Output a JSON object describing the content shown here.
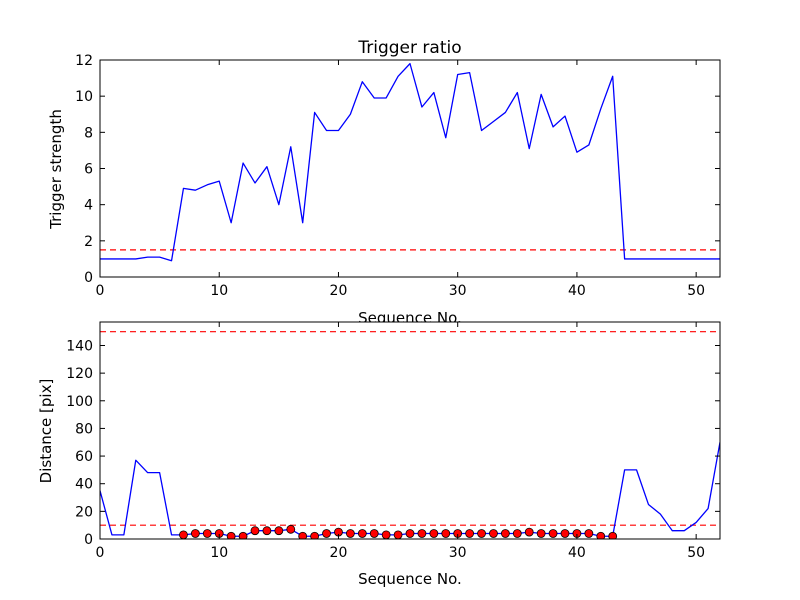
{
  "colors": {
    "line": "#0000ff",
    "threshold": "#ff0000",
    "marker_fill": "#ff0000",
    "marker_edge": "#000000",
    "axes": "#000000",
    "background": "#ffffff"
  },
  "chart_data": [
    {
      "type": "line",
      "title": "Trigger ratio",
      "xlabel": "Sequence No.",
      "ylabel": "Trigger strength",
      "xlim": [
        0,
        52
      ],
      "ylim": [
        0,
        12
      ],
      "xticks": [
        0,
        10,
        20,
        30,
        40,
        50
      ],
      "yticks": [
        0,
        2,
        4,
        6,
        8,
        10,
        12
      ],
      "grid": false,
      "legend": "none",
      "series": [
        {
          "style": "line",
          "color": "#0000ff",
          "x": [
            0,
            1,
            2,
            3,
            4,
            5,
            6,
            7,
            8,
            9,
            10,
            11,
            12,
            13,
            14,
            15,
            16,
            17,
            18,
            19,
            20,
            21,
            22,
            23,
            24,
            25,
            26,
            27,
            28,
            29,
            30,
            31,
            32,
            33,
            34,
            35,
            36,
            37,
            38,
            39,
            40,
            41,
            42,
            43,
            44,
            45,
            46,
            47,
            48,
            49,
            50,
            51,
            52
          ],
          "y": [
            1.0,
            1.0,
            1.0,
            1.0,
            1.1,
            1.1,
            0.9,
            4.9,
            4.8,
            5.1,
            5.3,
            3.0,
            6.3,
            5.2,
            6.1,
            4.0,
            7.2,
            3.0,
            9.1,
            8.1,
            8.1,
            9.0,
            10.8,
            9.9,
            9.9,
            11.1,
            11.8,
            9.4,
            10.2,
            7.7,
            11.2,
            11.3,
            8.1,
            8.6,
            9.1,
            10.2,
            7.1,
            10.1,
            8.3,
            8.9,
            6.9,
            7.3,
            9.3,
            11.1,
            1.0,
            1.0,
            1.0,
            1.0,
            1.0,
            1.0,
            1.0,
            1.0,
            1.0
          ]
        }
      ],
      "thresholds": [
        {
          "y": 1.5,
          "color": "#ff0000",
          "style": "dashed"
        }
      ]
    },
    {
      "type": "line",
      "title": "",
      "xlabel": "Sequence No.",
      "ylabel": "Distance [pix]",
      "xlim": [
        0,
        52
      ],
      "ylim": [
        0,
        157
      ],
      "xticks": [
        0,
        10,
        20,
        30,
        40,
        50
      ],
      "yticks": [
        0,
        20,
        40,
        60,
        80,
        100,
        120,
        140
      ],
      "grid": false,
      "legend": "none",
      "series": [
        {
          "style": "line",
          "color": "#0000ff",
          "x": [
            0,
            1,
            2,
            3,
            4,
            5,
            6,
            7,
            8,
            9,
            10,
            11,
            12,
            13,
            14,
            15,
            16,
            17,
            18,
            19,
            20,
            21,
            22,
            23,
            24,
            25,
            26,
            27,
            28,
            29,
            30,
            31,
            32,
            33,
            34,
            35,
            36,
            37,
            38,
            39,
            40,
            41,
            42,
            43,
            44,
            45,
            46,
            47,
            48,
            49,
            50,
            51,
            52
          ],
          "y": [
            35,
            3,
            3,
            57,
            48,
            48,
            3,
            3,
            4,
            4,
            4,
            2,
            2,
            6,
            6,
            6,
            7,
            2,
            2,
            4,
            5,
            4,
            4,
            4,
            3,
            3,
            4,
            4,
            4,
            4,
            4,
            4,
            4,
            4,
            4,
            4,
            5,
            4,
            4,
            4,
            4,
            4,
            2,
            2,
            50,
            50,
            25,
            18,
            6,
            6,
            12,
            22,
            70
          ]
        },
        {
          "style": "markers",
          "color": "#ff0000",
          "x": [
            7,
            8,
            9,
            10,
            11,
            12,
            13,
            14,
            15,
            16,
            17,
            18,
            19,
            20,
            21,
            22,
            23,
            24,
            25,
            26,
            27,
            28,
            29,
            30,
            31,
            32,
            33,
            34,
            35,
            36,
            37,
            38,
            39,
            40,
            41,
            42,
            43
          ],
          "y": [
            3,
            4,
            4,
            4,
            2,
            2,
            6,
            6,
            6,
            7,
            2,
            2,
            4,
            5,
            4,
            4,
            4,
            3,
            3,
            4,
            4,
            4,
            4,
            4,
            4,
            4,
            4,
            4,
            4,
            5,
            4,
            4,
            4,
            4,
            4,
            2,
            2
          ]
        }
      ],
      "thresholds": [
        {
          "y": 150,
          "color": "#ff0000",
          "style": "dashed"
        },
        {
          "y": 10,
          "color": "#ff0000",
          "style": "dashed"
        }
      ]
    }
  ]
}
